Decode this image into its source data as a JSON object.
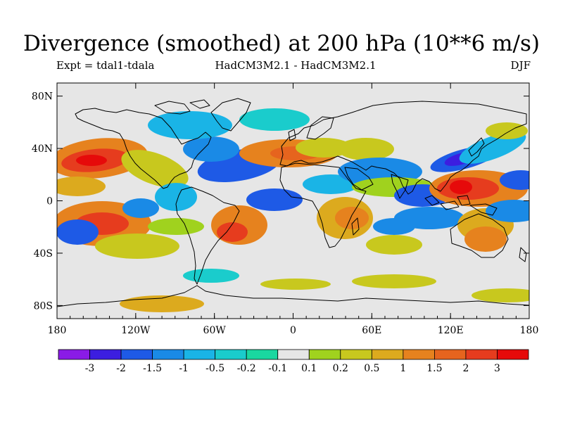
{
  "header": {
    "title": "Divergence (smoothed) at 200 hPa (10**6 m/s)",
    "experiment": "Expt = tdal1-tdala",
    "models": "HadCM3M2.1 - HadCM3M2.1",
    "season": "DJF"
  },
  "map": {
    "projection": "cylindrical-equidistant",
    "lon_ticks": [
      "180",
      "120W",
      "60W",
      "0",
      "60E",
      "120E",
      "180"
    ],
    "lat_ticks": [
      "80N",
      "40N",
      "0",
      "40S",
      "80S"
    ],
    "missing_color": "#e6e6e6"
  },
  "colorbar": {
    "labels": [
      "-3",
      "-2",
      "-1.5",
      "-1",
      "-0.5",
      "-0.2",
      "-0.1",
      "0.1",
      "0.2",
      "0.5",
      "1",
      "1.5",
      "2",
      "3"
    ],
    "colors": [
      "#8a1be6",
      "#3c1ee0",
      "#1e5ae6",
      "#1a8ae6",
      "#1ab4e6",
      "#1acccc",
      "#1ad7a0",
      "#e6e6e6",
      "#a0d21e",
      "#c8c81e",
      "#dcaa1e",
      "#e6821e",
      "#e6641e",
      "#e63c1e",
      "#e60a0a"
    ]
  }
}
